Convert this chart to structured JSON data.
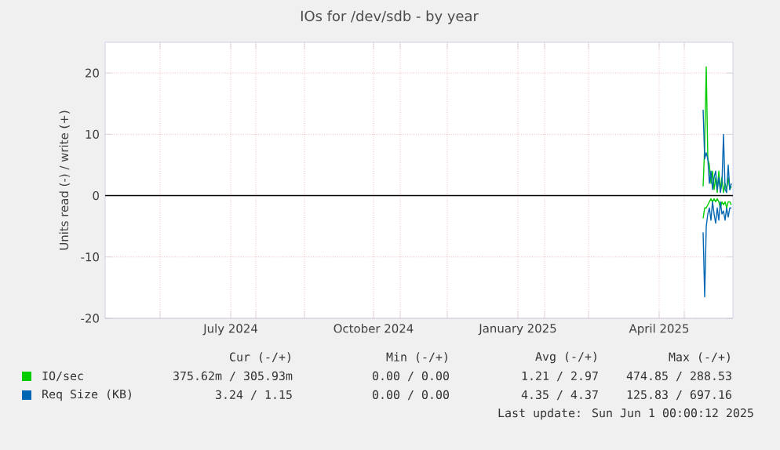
{
  "chart_data": {
    "type": "line",
    "title": "IOs for /dev/sdb - by year",
    "ylabel": "Units read (-) / write (+)",
    "xlim": [
      "2024-04-27",
      "2025-06-01"
    ],
    "xticks": [
      {
        "value": "2024-06-01",
        "label": null
      },
      {
        "value": "2024-07-16",
        "label": "July 2024"
      },
      {
        "value": "2024-08-01",
        "label": null
      },
      {
        "value": "2024-09-01",
        "label": null
      },
      {
        "value": "2024-10-15",
        "label": "October 2024"
      },
      {
        "value": "2024-11-01",
        "label": null
      },
      {
        "value": "2024-12-01",
        "label": null
      },
      {
        "value": "2025-01-15",
        "label": "January 2025"
      },
      {
        "value": "2025-02-01",
        "label": null
      },
      {
        "value": "2025-03-01",
        "label": null
      },
      {
        "value": "2025-04-15",
        "label": "April 2025"
      },
      {
        "value": "2025-05-01",
        "label": null
      }
    ],
    "ylim": [
      -20,
      25
    ],
    "yticks": [
      -20,
      -10,
      0,
      10,
      20
    ],
    "grid": true,
    "legend": "bottom left",
    "x": [
      "2025-05-13",
      "2025-05-14",
      "2025-05-15",
      "2025-05-16",
      "2025-05-17",
      "2025-05-18",
      "2025-05-19",
      "2025-05-20",
      "2025-05-21",
      "2025-05-22",
      "2025-05-23",
      "2025-05-24",
      "2025-05-25",
      "2025-05-26",
      "2025-05-27",
      "2025-05-28",
      "2025-05-29",
      "2025-05-30",
      "2025-05-31"
    ],
    "series": [
      {
        "name": "IO/sec",
        "color": "#00cc00",
        "values": [
          1.5,
          8,
          21,
          6,
          5,
          2,
          4,
          1,
          3,
          0.5,
          4,
          1,
          3,
          0.5,
          2,
          1,
          3,
          1,
          1.5
        ]
      },
      {
        "color": "#00cc00",
        "values": [
          -3.7,
          -2,
          -2,
          -1.5,
          -1,
          -0.5,
          -1,
          -0.5,
          -1,
          -0.5,
          -1,
          -2,
          -1,
          -1.5,
          -1,
          -2,
          -1,
          -1,
          -1.5
        ]
      },
      {
        "name": "Req Size (KB)",
        "color": "#0066b3",
        "values": [
          14,
          6,
          7,
          6,
          2,
          4,
          1,
          3,
          4,
          1,
          3,
          0.5,
          2,
          10,
          1,
          0.5,
          5,
          1,
          2
        ]
      },
      {
        "color": "#0066b3",
        "values": [
          -6,
          -16.5,
          -5,
          -3,
          -2,
          -4,
          -1,
          -3,
          -4.5,
          -2,
          -4,
          -1,
          -3,
          -2.5,
          -4,
          -2,
          -3.5,
          -2,
          -2
        ]
      }
    ],
    "ref_lines": [
      {
        "axis": "y",
        "value": 0,
        "color": "#000000"
      }
    ],
    "annotations": [
      "Cur (-/+)",
      "Min (-/+)",
      "Avg (-/+)",
      "Max (-/+)",
      "375.62m / 305.93m",
      "0.00 / 0.00",
      "1.21 / 2.97",
      "474.85 / 288.53",
      "3.24 / 1.15",
      "0.00 / 0.00",
      "4.35 / 4.37",
      "125.83 / 697.16",
      "Last update: Sun Jun  1 00:00:12 2025"
    ]
  }
}
